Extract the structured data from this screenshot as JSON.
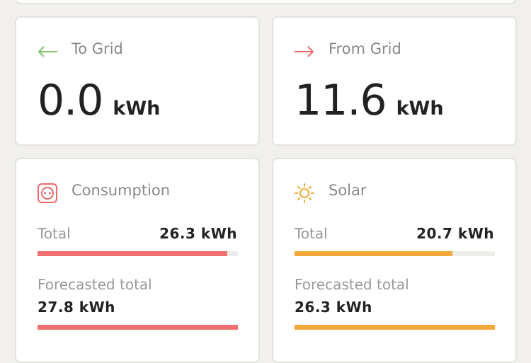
{
  "to_grid": {
    "title": "To Grid",
    "value": "0.0",
    "unit": "kWh"
  },
  "from_grid": {
    "title": "From Grid",
    "value": "11.6",
    "unit": "kWh"
  },
  "consumption": {
    "title": "Consumption",
    "color": "#f07070",
    "total": {
      "label": "Total",
      "value": 26.3,
      "value_label": "26.3 kWh"
    },
    "forecast": {
      "label": "Forecasted total",
      "value": 27.8,
      "value_label": "27.8 kWh"
    }
  },
  "solar": {
    "title": "Solar",
    "color": "#f2a93b",
    "total": {
      "label": "Total",
      "value": 20.7,
      "value_label": "20.7 kWh"
    },
    "forecast": {
      "label": "Forecasted total",
      "value": 26.3,
      "value_label": "26.3 kWh"
    }
  }
}
